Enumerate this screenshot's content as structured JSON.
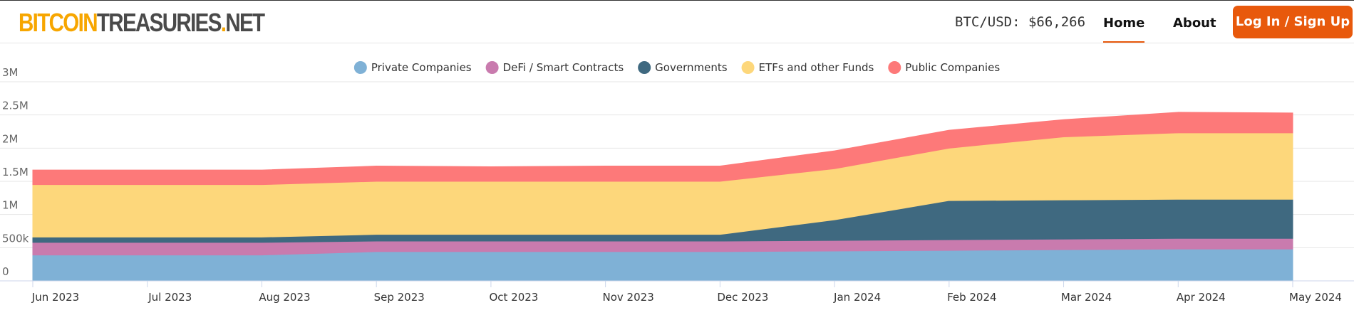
{
  "header": {
    "logo": [
      "BITCOIN",
      "TREASURIES",
      ".",
      "NET"
    ],
    "price": "BTC/USD: $66,266",
    "nav": [
      "Home",
      "About"
    ],
    "button": "Log In / Sign Up"
  },
  "chart_data": {
    "type": "stacked-area",
    "categories": [
      "Jun 2023",
      "Jul 2023",
      "Aug 2023",
      "Sep 2023",
      "Oct 2023",
      "Nov 2023",
      "Dec 2023",
      "Jan 2024",
      "Feb 2024",
      "Mar 2024",
      "Apr 2024",
      "May 2024"
    ],
    "series": [
      {
        "name": "Private Companies",
        "color": "#7fb1d6",
        "values": [
          390000,
          390000,
          390000,
          440000,
          440000,
          440000,
          440000,
          450000,
          460000,
          470000,
          480000,
          480000
        ]
      },
      {
        "name": "DeFi / Smart Contracts",
        "color": "#c97bae",
        "values": [
          190000,
          190000,
          190000,
          160000,
          160000,
          160000,
          160000,
          160000,
          160000,
          160000,
          160000,
          160000
        ]
      },
      {
        "name": "Governments",
        "color": "#3f6980",
        "values": [
          80000,
          80000,
          80000,
          100000,
          100000,
          100000,
          100000,
          310000,
          590000,
          590000,
          590000,
          590000
        ]
      },
      {
        "name": "ETFs and other Funds",
        "color": "#fdd77b",
        "values": [
          790000,
          790000,
          790000,
          800000,
          800000,
          800000,
          800000,
          770000,
          790000,
          950000,
          1000000,
          1000000
        ]
      },
      {
        "name": "Public Companies",
        "color": "#fd7979",
        "values": [
          220000,
          220000,
          220000,
          230000,
          220000,
          230000,
          230000,
          270000,
          270000,
          260000,
          310000,
          300000
        ]
      }
    ],
    "ylim": [
      0,
      3000000
    ],
    "yticks": [
      {
        "value": 0,
        "label": "0"
      },
      {
        "value": 500000,
        "label": "500k"
      },
      {
        "value": 1000000,
        "label": "1M"
      },
      {
        "value": 1500000,
        "label": "1.5M"
      },
      {
        "value": 2000000,
        "label": "2M"
      },
      {
        "value": 2500000,
        "label": "2.5M"
      },
      {
        "value": 3000000,
        "label": "3M"
      }
    ],
    "grid": true
  }
}
